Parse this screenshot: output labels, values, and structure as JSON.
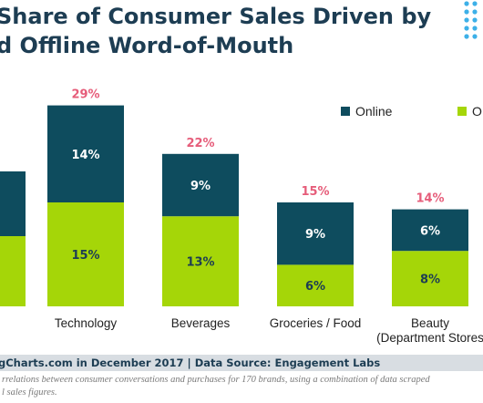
{
  "title_lines": [
    "Share of Consumer Sales Driven by",
    "d Offline Word-of-Mouth"
  ],
  "colors": {
    "online": "#0e4c5e",
    "offline": "#a5d608",
    "total": "#e65d7a",
    "title": "#1d3d53",
    "footer_bg": "#d8dde2"
  },
  "footer": {
    "source": "gCharts.com in December 2017 | Data Source: Engagement Labs"
  },
  "notes": [
    "rrelations between consumer conversations and purchases for 170 brands, using a combination of data scraped",
    "l sales figures."
  ],
  "chart_data": {
    "type": "bar",
    "stacked": true,
    "categories": [
      "",
      "Technology",
      "Beverages",
      "Groceries / Food",
      "Beauty (Department Stores)"
    ],
    "category_label_lines": [
      [
        ""
      ],
      [
        "Technology"
      ],
      [
        "Beverages"
      ],
      [
        "Groceries / Food"
      ],
      [
        "Beauty",
        "(Department Stores"
      ]
    ],
    "series": [
      {
        "name": "Online",
        "values": [
          null,
          14,
          9,
          9,
          6
        ]
      },
      {
        "name": "Offline",
        "values": [
          null,
          15,
          13,
          6,
          8
        ]
      }
    ],
    "totals": [
      null,
      29,
      22,
      15,
      14
    ],
    "value_format": "{}%",
    "legend_labels": [
      "Online",
      "O"
    ],
    "legend_position": "top-right",
    "grid": false
  }
}
